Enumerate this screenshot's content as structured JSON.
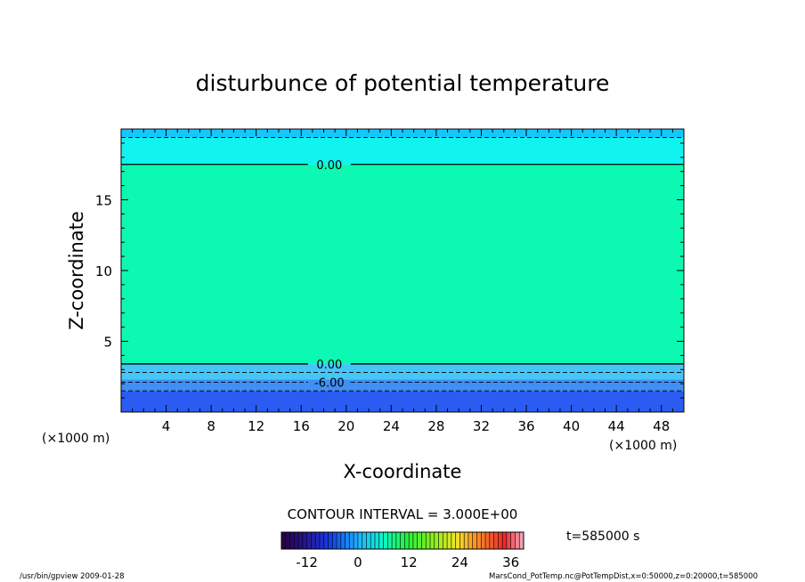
{
  "chart_data": {
    "type": "heatmap",
    "title": "disturbunce of potential temperature",
    "xlabel": "X-coordinate",
    "ylabel": "Z-coordinate",
    "x_unit": "(×1000 m)",
    "y_unit": "(×1000 m)",
    "xlim": [
      0,
      50
    ],
    "ylim": [
      0,
      20
    ],
    "x_ticks": [
      4,
      8,
      12,
      16,
      20,
      24,
      28,
      32,
      36,
      40,
      44,
      48
    ],
    "y_ticks": [
      5,
      10,
      15
    ],
    "layers": [
      {
        "z0": 0.0,
        "z1": 1.5,
        "color": "#2a5cf2"
      },
      {
        "z0": 1.5,
        "z1": 2.3,
        "color": "#3f8ff4"
      },
      {
        "z0": 2.3,
        "z1": 3.4,
        "color": "#46c6f7"
      },
      {
        "z0": 3.4,
        "z1": 17.5,
        "color": "#0bf9b2"
      },
      {
        "z0": 17.5,
        "z1": 19.4,
        "color": "#10f3ef"
      },
      {
        "z0": 19.4,
        "z1": 20.0,
        "color": "#14c8ff"
      }
    ],
    "contour_lines": [
      {
        "z": 17.5,
        "label": "0.00",
        "dashed": false,
        "label_x": 18.5
      },
      {
        "z": 3.4,
        "label": "0.00",
        "dashed": false,
        "label_x": 18.5
      },
      {
        "z": 2.1,
        "label": "-6.00",
        "dashed": true,
        "label_x": 18.5
      },
      {
        "z": 19.4,
        "label": "",
        "dashed": true,
        "label_x": 0
      },
      {
        "z": 2.8,
        "label": "",
        "dashed": true,
        "label_x": 0
      },
      {
        "z": 1.5,
        "label": "",
        "dashed": true,
        "label_x": 0
      }
    ],
    "contour_interval": "CONTOUR INTERVAL = 3.000E+00",
    "time_label": "t=585000 s",
    "colorbar": {
      "min": -18,
      "max": 39,
      "ticks": [
        -12,
        0,
        12,
        24,
        36
      ]
    }
  },
  "footer": {
    "left": "/usr/bin/gpview   2009-01-28",
    "right": "MarsCond_PotTemp.nc@PotTempDist,x=0:50000,z=0:20000,t=585000"
  }
}
